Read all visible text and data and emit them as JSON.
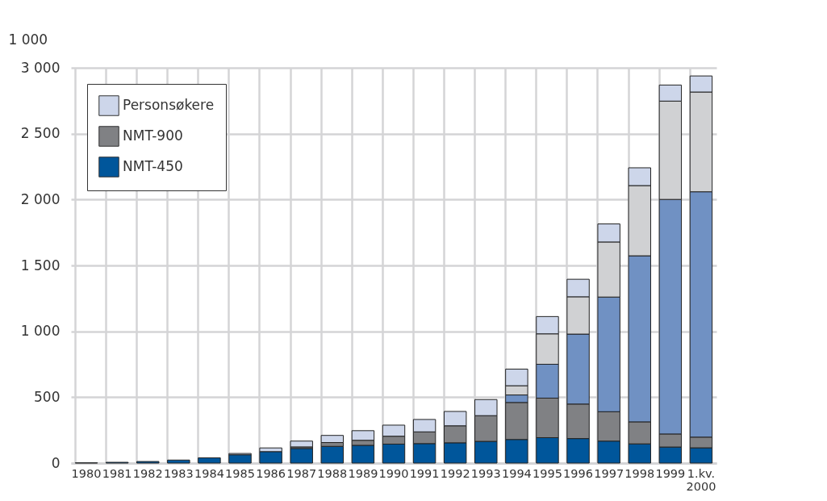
{
  "chart_data": {
    "type": "bar",
    "stacked": true,
    "ylabel": "1 000",
    "legend": "top left",
    "grid": true,
    "categories": [
      "1980",
      "1981",
      "1982",
      "1983",
      "1984",
      "1985",
      "1986",
      "1987",
      "1988",
      "1989",
      "1990",
      "1991",
      "1992",
      "1993",
      "1994",
      "1995",
      "1996",
      "1997",
      "1998",
      "1999",
      "1.kv. 2000"
    ],
    "ylim": [
      0,
      3000
    ],
    "yticks": [
      0,
      500,
      {
        "value": 1000,
        "label": "1 000"
      },
      {
        "value": 1500,
        "label": "1 500"
      },
      {
        "value": 2000,
        "label": "2 000"
      },
      {
        "value": 2500,
        "label": "2 500"
      },
      {
        "value": 3000,
        "label": "3 000"
      }
    ],
    "series": [
      {
        "name": "NMT-450",
        "color": "#00569b",
        "values": [
          2,
          6,
          12,
          23,
          40,
          63,
          87,
          111,
          127,
          135,
          144,
          148,
          154,
          165,
          179,
          193,
          186,
          167,
          146,
          122,
          116
        ]
      },
      {
        "name": "NMT-900",
        "color": "#808184",
        "values": [
          null,
          null,
          null,
          null,
          null,
          null,
          null,
          12,
          29,
          38,
          60,
          89,
          129,
          195,
          281,
          300,
          262,
          223,
          167,
          99,
          81
        ]
      },
      {
        "color": "#7091c3",
        "values": [
          null,
          null,
          null,
          null,
          null,
          null,
          null,
          null,
          null,
          null,
          null,
          null,
          null,
          null,
          57,
          257,
          531,
          870,
          1260,
          1780,
          1862
        ]
      },
      {
        "color": "#d0d1d3",
        "values": [
          null,
          null,
          null,
          null,
          null,
          null,
          null,
          null,
          null,
          null,
          null,
          null,
          null,
          null,
          70,
          231,
          283,
          418,
          533,
          746,
          757
        ]
      },
      {
        "name": "Personsøkere",
        "color": "#cdd6ea",
        "values": [
          null,
          null,
          null,
          null,
          null,
          10,
          28,
          44,
          54,
          73,
          84,
          94,
          109,
          122,
          126,
          131,
          133,
          137,
          135,
          122,
          122
        ]
      }
    ]
  }
}
